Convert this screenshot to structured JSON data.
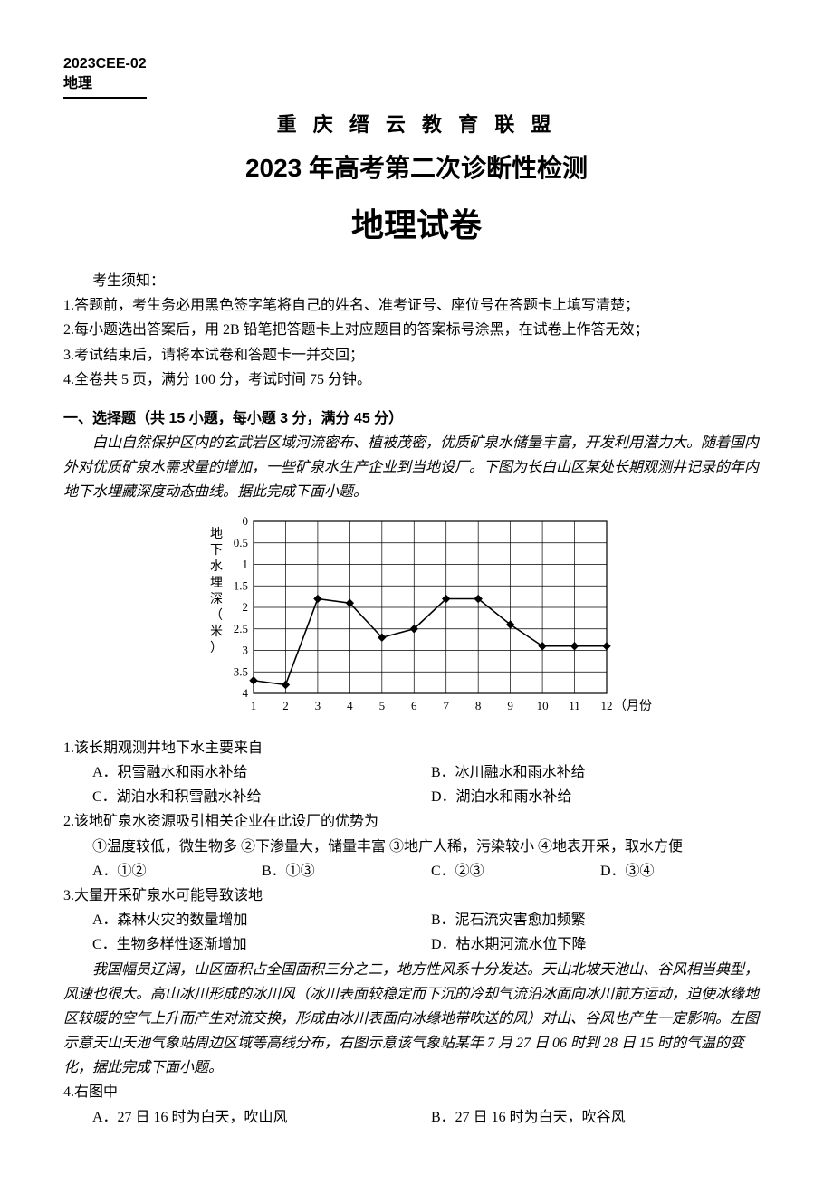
{
  "header": {
    "code_line1": "2023CEE-02",
    "code_line2": "地理"
  },
  "titles": {
    "org": "重 庆 缙 云 教 育 联 盟",
    "exam": "2023 年高考第二次诊断性检测",
    "subject": "地理试卷"
  },
  "notice": {
    "head": "考生须知：",
    "items": [
      "1.答题前，考生务必用黑色签字笔将自己的姓名、准考证号、座位号在答题卡上填写清楚；",
      "2.每小题选出答案后，用 2B 铅笔把答题卡上对应题目的答案标号涂黑，在试卷上作答无效；",
      "3.考试结束后，请将本试卷和答题卡一并交回；",
      "4.全卷共 5 页，满分 100 分，考试时间 75 分钟。"
    ]
  },
  "section1": {
    "heading": "一、选择题（共 15 小题，每小题 3 分，满分 45 分）"
  },
  "passage1": "白山自然保护区内的玄武岩区域河流密布、植被茂密，优质矿泉水储量丰富，开发利用潜力大。随着国内外对优质矿泉水需求量的增加，一些矿泉水生产企业到当地设厂。下图为长白山区某处长期观测井记录的年内地下水埋藏深度动态曲线。据此完成下面小题。",
  "chart1": {
    "type": "line",
    "y_label_top": "地下水埋深（米）",
    "x_label": "（月份）",
    "x_ticks": [
      "1",
      "2",
      "3",
      "4",
      "5",
      "6",
      "7",
      "8",
      "9",
      "10",
      "11",
      "12"
    ],
    "y_ticks": [
      "0",
      "0.5",
      "1",
      "1.5",
      "2",
      "2.5",
      "3",
      "3.5",
      "4"
    ],
    "ylim": [
      4,
      0
    ],
    "data": [
      {
        "x": 1,
        "y": 3.7
      },
      {
        "x": 2,
        "y": 3.8
      },
      {
        "x": 3,
        "y": 1.8
      },
      {
        "x": 4,
        "y": 1.9
      },
      {
        "x": 5,
        "y": 2.7
      },
      {
        "x": 6,
        "y": 2.5
      },
      {
        "x": 7,
        "y": 1.8
      },
      {
        "x": 8,
        "y": 1.8
      },
      {
        "x": 9,
        "y": 2.4
      },
      {
        "x": 10,
        "y": 2.9
      },
      {
        "x": 11,
        "y": 2.9
      },
      {
        "x": 12,
        "y": 2.9
      }
    ],
    "line_color": "#000000",
    "marker": "diamond",
    "grid_color": "#000000",
    "background": "#ffffff",
    "axis_fontsize": 13
  },
  "q1": {
    "stem": "1.该长期观测井地下水主要来自",
    "opts": {
      "A": "A．积雪融水和雨水补给",
      "B": "B．冰川融水和雨水补给",
      "C": "C．湖泊水和积雪融水补给",
      "D": "D．湖泊水和雨水补给"
    }
  },
  "q2": {
    "stem": "2.该地矿泉水资源吸引相关企业在此设厂的优势为",
    "circles": "①温度较低，微生物多  ②下渗量大，储量丰富  ③地广人稀，污染较小  ④地表开采，取水方便",
    "opts": {
      "A": "A．①②",
      "B": "B．①③",
      "C": "C．②③",
      "D": "D．③④"
    }
  },
  "q3": {
    "stem": "3.大量开采矿泉水可能导致该地",
    "opts": {
      "A": "A．森林火灾的数量增加",
      "B": "B．泥石流灾害愈加频繁",
      "C": "C．生物多样性逐渐增加",
      "D": "D．枯水期河流水位下降"
    }
  },
  "passage2": "我国幅员辽阔，山区面积占全国面积三分之二，地方性风系十分发达。天山北坡天池山、谷风相当典型，风速也很大。高山冰川形成的冰川风（冰川表面较稳定而下沉的冷却气流沿冰面向冰川前方运动，迫使冰缘地区较暖的空气上升而产生对流交换，形成由冰川表面向冰缘地带吹送的风）对山、谷风也产生一定影响。左图示意天山天池气象站周边区域等高线分布，右图示意该气象站某年 7 月 27 日 06 时到 28 日 15 时的气温的变化，据此完成下面小题。",
  "q4": {
    "stem": "4.右图中",
    "opts": {
      "A": "A．27 日 16 时为白天，吹山风",
      "B": "B．27 日 16 时为白天，吹谷风"
    }
  }
}
